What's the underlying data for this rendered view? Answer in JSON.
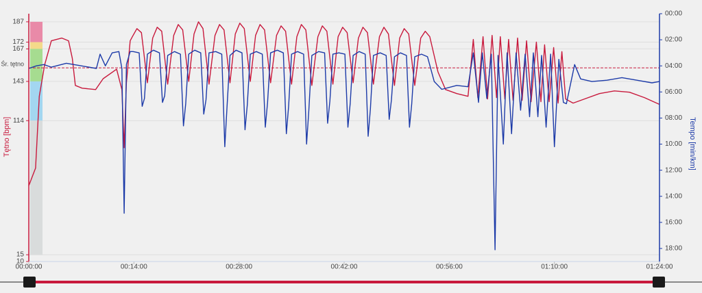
{
  "chart_data": {
    "type": "line",
    "y_title": "Tętno [bpm]",
    "y2_title": "Tempo [min/km]",
    "xlim": [
      0,
      84
    ],
    "xticks": [
      {
        "value": 0,
        "label": "00:00:00"
      },
      {
        "value": 14,
        "label": "00:14:00"
      },
      {
        "value": 28,
        "label": "00:28:00"
      },
      {
        "value": 42,
        "label": "00:42:00"
      },
      {
        "value": 56,
        "label": "00:56:00"
      },
      {
        "value": 70,
        "label": "01:10:00"
      },
      {
        "value": 84,
        "label": "01:24:00"
      }
    ],
    "ylim": [
      10,
      193
    ],
    "yticks": [
      187,
      172,
      167,
      143,
      114,
      15,
      10
    ],
    "y2lim": [
      19,
      0
    ],
    "y2ticks": [
      {
        "value": 0,
        "label": "00:00"
      },
      {
        "value": 2,
        "label": "02:00"
      },
      {
        "value": 4,
        "label": "04:00"
      },
      {
        "value": 6,
        "label": "06:00"
      },
      {
        "value": 8,
        "label": "08:00"
      },
      {
        "value": 10,
        "label": "10:00"
      },
      {
        "value": 12,
        "label": "12:00"
      },
      {
        "value": 14,
        "label": "14:00"
      },
      {
        "value": 16,
        "label": "16:00"
      },
      {
        "value": 18,
        "label": "18:00"
      }
    ],
    "grid": true,
    "avg": {
      "value": 153,
      "label": "Śr. tętno",
      "color": "#c8193c"
    },
    "zones": [
      {
        "from": 172,
        "to": 187,
        "color": "#e98aa8"
      },
      {
        "from": 167,
        "to": 172,
        "color": "#f4d98a"
      },
      {
        "from": 143,
        "to": 167,
        "color": "#a6dc90"
      },
      {
        "from": 114,
        "to": 143,
        "color": "#a3d6f0"
      },
      {
        "from": 15,
        "to": 114,
        "color": "#d9dcdc"
      }
    ],
    "series": [
      {
        "color": "#c8193c",
        "axis": "y",
        "x": [
          0,
          0.9,
          1.4,
          2.1,
          3.0,
          4.4,
          5.3,
          5.8,
          6.2,
          7.1,
          8.9,
          9.9,
          11.7,
          12.4,
          12.7,
          13.0,
          13.5,
          13.8,
          14.4,
          15.0,
          15.8,
          16.5,
          17.1,
          17.7,
          18.5,
          19.3,
          19.9,
          20.5,
          21.3,
          22.0,
          22.6,
          23.2,
          24.0,
          24.8,
          25.4,
          26.0,
          26.8,
          27.5,
          28.1,
          28.7,
          29.5,
          30.2,
          30.8,
          31.4,
          32.2,
          33.0,
          33.6,
          34.2,
          35.0,
          35.7,
          36.3,
          36.9,
          37.7,
          38.5,
          39.1,
          39.7,
          40.5,
          41.2,
          41.8,
          42.4,
          43.2,
          43.9,
          44.5,
          45.1,
          45.9,
          46.7,
          47.3,
          47.9,
          48.7,
          49.4,
          50.0,
          50.6,
          51.4,
          52.2,
          52.8,
          53.4,
          54.5,
          55.5,
          57,
          58.5,
          59.2,
          59.8,
          60.5,
          61.1,
          61.7,
          62.3,
          62.8,
          63.4,
          63.9,
          64.5,
          65.1,
          65.7,
          66.3,
          66.9,
          67.6,
          68.2,
          68.7,
          69.3,
          69.9,
          70.5,
          71.0,
          71.5,
          72.5,
          74,
          76,
          78,
          80,
          82,
          84
        ],
        "values": [
          66,
          79,
          132,
          155,
          173,
          175,
          173,
          160,
          140,
          138,
          137,
          145,
          152,
          137,
          94,
          142,
          173,
          176,
          182,
          179,
          142,
          175,
          183,
          180,
          141,
          177,
          185,
          181,
          143,
          178,
          187,
          182,
          141,
          177,
          185,
          181,
          142,
          178,
          186,
          182,
          143,
          177,
          185,
          181,
          142,
          177,
          184,
          180,
          141,
          176,
          185,
          181,
          140,
          176,
          184,
          180,
          141,
          176,
          183,
          179,
          142,
          175,
          183,
          179,
          141,
          176,
          183,
          178,
          140,
          175,
          182,
          178,
          140,
          175,
          180,
          176,
          150,
          137,
          134,
          132,
          174,
          131,
          176,
          130,
          177,
          131,
          176,
          130,
          174,
          129,
          175,
          129,
          173,
          128,
          172,
          128,
          170,
          128,
          168,
          127,
          165,
          130,
          127,
          130,
          134,
          136,
          135,
          131,
          126
        ]
      },
      {
        "color": "#1c3aa8",
        "axis": "y2",
        "x": [
          0,
          1,
          2,
          3,
          5,
          7,
          9,
          9.5,
          10.2,
          11.1,
          12.0,
          12.4,
          12.7,
          13.0,
          13.5,
          13.9,
          14.7,
          15.1,
          15.4,
          15.8,
          16.6,
          17.4,
          17.8,
          18.1,
          18.5,
          19.4,
          20.2,
          20.6,
          20.9,
          21.3,
          22.1,
          22.9,
          23.3,
          23.6,
          24.0,
          24.9,
          25.7,
          26.1,
          26.4,
          26.8,
          27.6,
          28.4,
          28.8,
          29.1,
          29.5,
          30.3,
          31.1,
          31.5,
          31.8,
          32.2,
          33.1,
          33.9,
          34.3,
          34.6,
          35.0,
          35.8,
          36.6,
          37.0,
          37.3,
          37.7,
          38.6,
          39.4,
          39.8,
          40.1,
          40.5,
          41.3,
          42.1,
          42.5,
          42.8,
          43.2,
          44.0,
          44.8,
          45.2,
          45.5,
          45.9,
          46.8,
          47.6,
          48.0,
          48.3,
          48.7,
          49.5,
          50.3,
          50.7,
          51.0,
          51.4,
          52.3,
          53.1,
          54,
          55,
          57,
          58.5,
          59.2,
          59.9,
          60.4,
          61.0,
          61.6,
          62.1,
          62.5,
          63.2,
          63.7,
          64.3,
          64.9,
          65.5,
          66.1,
          66.7,
          67.2,
          67.8,
          68.3,
          68.9,
          69.5,
          70.0,
          70.6,
          71.2,
          71.6,
          72.7,
          73.5,
          75,
          77,
          79,
          81,
          83,
          84
        ],
        "values": [
          4.2,
          4.0,
          3.9,
          4.1,
          3.8,
          4.0,
          4.2,
          3.1,
          4.0,
          3.0,
          2.9,
          4.2,
          15.3,
          3.9,
          2.9,
          2.9,
          3.0,
          7.1,
          6.5,
          3.1,
          2.8,
          3.0,
          6.8,
          6.3,
          3.2,
          2.9,
          3.1,
          8.6,
          6.9,
          3.1,
          2.8,
          3.0,
          7.7,
          6.6,
          3.0,
          2.9,
          3.1,
          10.2,
          7.2,
          3.2,
          2.8,
          3.0,
          8.9,
          7.0,
          3.1,
          2.9,
          3.1,
          8.7,
          6.8,
          3.0,
          2.8,
          3.0,
          9.2,
          7.1,
          3.1,
          2.9,
          3.1,
          10.0,
          7.4,
          3.2,
          2.9,
          3.0,
          8.4,
          6.7,
          3.1,
          3.0,
          3.1,
          8.7,
          6.9,
          3.2,
          2.9,
          3.1,
          9.4,
          7.3,
          3.2,
          3.0,
          3.2,
          8.1,
          6.6,
          3.3,
          3.0,
          3.2,
          8.7,
          6.9,
          3.3,
          3.1,
          3.3,
          5.2,
          5.8,
          5.5,
          5.6,
          3.0,
          6.8,
          3.0,
          6.5,
          3.1,
          18.1,
          3.2,
          10.0,
          3.0,
          9.2,
          3.0,
          7.4,
          3.1,
          7.9,
          3.0,
          7.9,
          3.2,
          8.7,
          3.1,
          10.2,
          3.5,
          6.8,
          6.9,
          3.9,
          5.0,
          5.2,
          5.1,
          4.9,
          5.1,
          5.3,
          5.2
        ]
      }
    ]
  }
}
